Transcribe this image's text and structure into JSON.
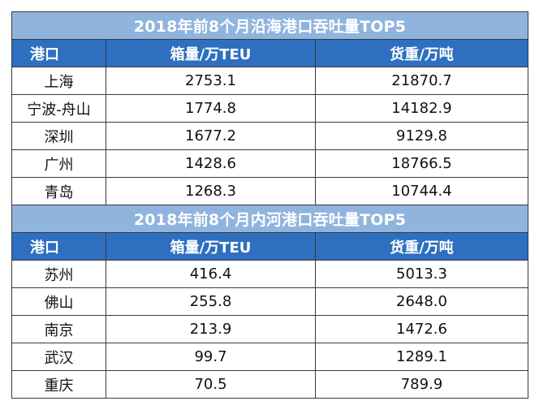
{
  "coastal": {
    "title": "2018年前8个月沿海港口吞吐量TOP5",
    "headers": {
      "port": "港口",
      "teu": "箱量/万TEU",
      "cargo": "货重/万吨"
    },
    "rows": [
      {
        "port": "上海",
        "teu": "2753.1",
        "cargo": "21870.7"
      },
      {
        "port": "宁波-舟山",
        "teu": "1774.8",
        "cargo": "14182.9"
      },
      {
        "port": "深圳",
        "teu": "1677.2",
        "cargo": "9129.8"
      },
      {
        "port": "广州",
        "teu": "1428.6",
        "cargo": "18766.5"
      },
      {
        "port": "青岛",
        "teu": "1268.3",
        "cargo": "10744.4"
      }
    ]
  },
  "inland": {
    "title": "2018年前8个月内河港口吞吐量TOP5",
    "headers": {
      "port": "港口",
      "teu": "箱量/万TEU",
      "cargo": "货重/万吨"
    },
    "rows": [
      {
        "port": "苏州",
        "teu": "416.4",
        "cargo": "5013.3"
      },
      {
        "port": "佛山",
        "teu": "255.8",
        "cargo": "2648.0"
      },
      {
        "port": "南京",
        "teu": "213.9",
        "cargo": "1472.6"
      },
      {
        "port": "武汉",
        "teu": "99.7",
        "cargo": "1289.1"
      },
      {
        "port": "重庆",
        "teu": "70.5",
        "cargo": "789.9"
      }
    ]
  },
  "colors": {
    "title_bg": "#8fb4de",
    "header_bg": "#2e6fc0",
    "border": "#3a3a3a"
  }
}
